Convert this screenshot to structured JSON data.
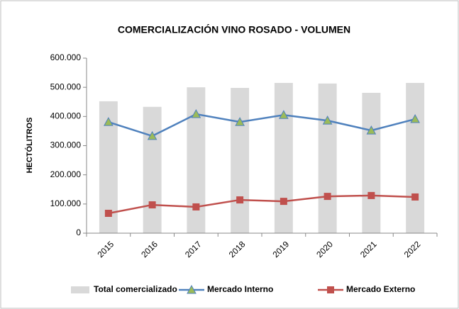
{
  "chart_data": {
    "type": "combo",
    "title": "COMERCIALIZACIÓN VINO ROSADO  - VOLUMEN",
    "y_label": "HECTÓLITROS",
    "categories": [
      "2015",
      "2016",
      "2017",
      "2018",
      "2019",
      "2020",
      "2021",
      "2022"
    ],
    "series": [
      {
        "name": "Total comercializado",
        "type": "bar",
        "color": "#d9d9d9",
        "values": [
          452000,
          433000,
          500000,
          498000,
          515000,
          513000,
          481000,
          515000
        ]
      },
      {
        "name": "Mercado Interno",
        "type": "line",
        "marker": "triangle",
        "color": "#4f81bd",
        "values": [
          381000,
          333000,
          408000,
          381000,
          405000,
          386000,
          352000,
          391000
        ]
      },
      {
        "name": "Mercado Externo",
        "type": "line",
        "marker": "square",
        "color": "#c0504d",
        "values": [
          68000,
          97000,
          90000,
          114000,
          109000,
          126000,
          129000,
          124000
        ]
      }
    ],
    "ylim": [
      0,
      600000
    ],
    "yticks": [
      0,
      {
        "value": 100000,
        "label": "100.000"
      },
      {
        "value": 200000,
        "label": "200.000"
      },
      {
        "value": 300000,
        "label": "300.000"
      },
      {
        "value": 400000,
        "label": "400.000"
      },
      {
        "value": 500000,
        "label": "500.000"
      },
      {
        "value": 600000,
        "label": "600.000"
      }
    ],
    "legend": "bottom"
  }
}
